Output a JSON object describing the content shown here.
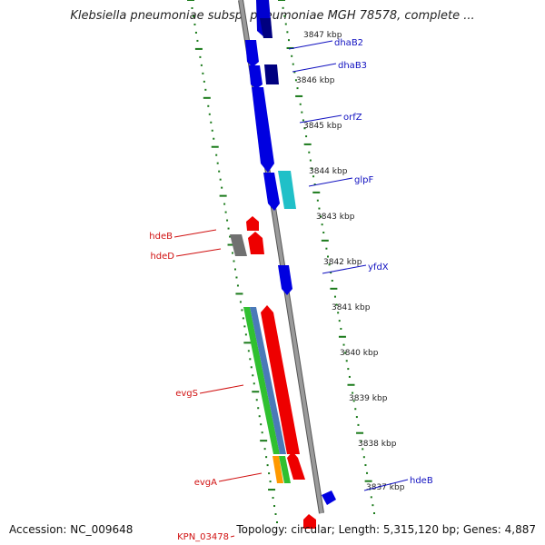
{
  "title": "Klebsiella pneumoniae subsp. pneumoniae MGH 78578, complete ...",
  "accession": "Accession: NC_009648",
  "summary": "Topology: circular; Length: 5,315,120 bp; Genes: 4,887",
  "colors": {
    "backbone": "#8c8c8c",
    "tick": "#1a7a1a",
    "forward_label": "#1010c0",
    "reverse_label": "#d01010"
  },
  "kbp_ticks": [
    "3847 kbp",
    "3846 kbp",
    "3845 kbp",
    "3844 kbp",
    "3843 kbp",
    "3842 kbp",
    "3841 kbp",
    "3840 kbp",
    "3839 kbp",
    "3838 kbp",
    "3837 kbp"
  ],
  "forward_labels": [
    {
      "name": "dhaB2"
    },
    {
      "name": "dhaB3"
    },
    {
      "name": "orfZ"
    },
    {
      "name": "glpF"
    },
    {
      "name": "yfdX"
    },
    {
      "name": "hdeB"
    }
  ],
  "reverse_labels": [
    {
      "name": "hdeB"
    },
    {
      "name": "hdeD"
    },
    {
      "name": "evgS"
    },
    {
      "name": "evgA"
    },
    {
      "name": "KPN_03478"
    }
  ]
}
